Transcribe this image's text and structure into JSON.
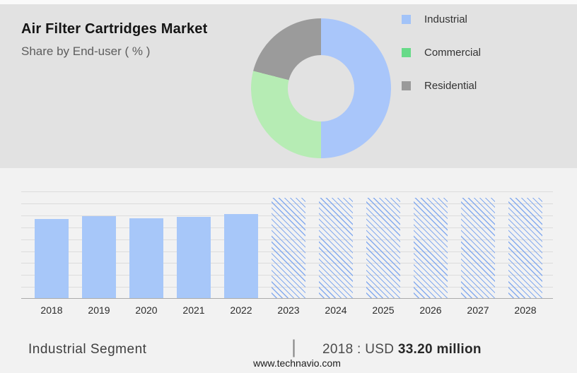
{
  "header": {
    "title": "Air Filter Cartridges Market",
    "subtitle": "Share by End-user ( % )"
  },
  "chart_data": [
    {
      "type": "pie",
      "subtype": "donut",
      "title": "Share by End-user ( % )",
      "labels": [
        "Industrial",
        "Commercial",
        "Residential"
      ],
      "values": [
        50,
        29,
        21
      ],
      "colors": [
        "#a9c6fa",
        "#b6ecb4",
        "#9b9b9b"
      ],
      "legend_swatch_colors": [
        "#a2c3f8",
        "#67da88",
        "#9a9a9a"
      ],
      "legend_position": "right",
      "hole_color": "#e2e2e2"
    },
    {
      "type": "bar",
      "unit": "USD million",
      "categories": [
        "2018",
        "2019",
        "2020",
        "2021",
        "2022",
        "2023",
        "2024",
        "2025",
        "2026",
        "2027",
        "2028"
      ],
      "values": [
        33.2,
        34.2,
        33.4,
        34.1,
        35.3,
        null,
        null,
        null,
        null,
        null,
        null
      ],
      "forecast_from_index": 5,
      "forecast_style": "hatched",
      "ylim": [
        0,
        45
      ],
      "grid": true,
      "bar_color": "#a7c7f9",
      "hatch_color": "#85abef",
      "annotation": "2018 : USD 33.20 million"
    }
  ],
  "footer": {
    "segment_label": "Industrial Segment",
    "divider": "|",
    "value_prefix": "2018 : USD",
    "value_bold": "33.20 million",
    "website": "www.technavio.com"
  }
}
